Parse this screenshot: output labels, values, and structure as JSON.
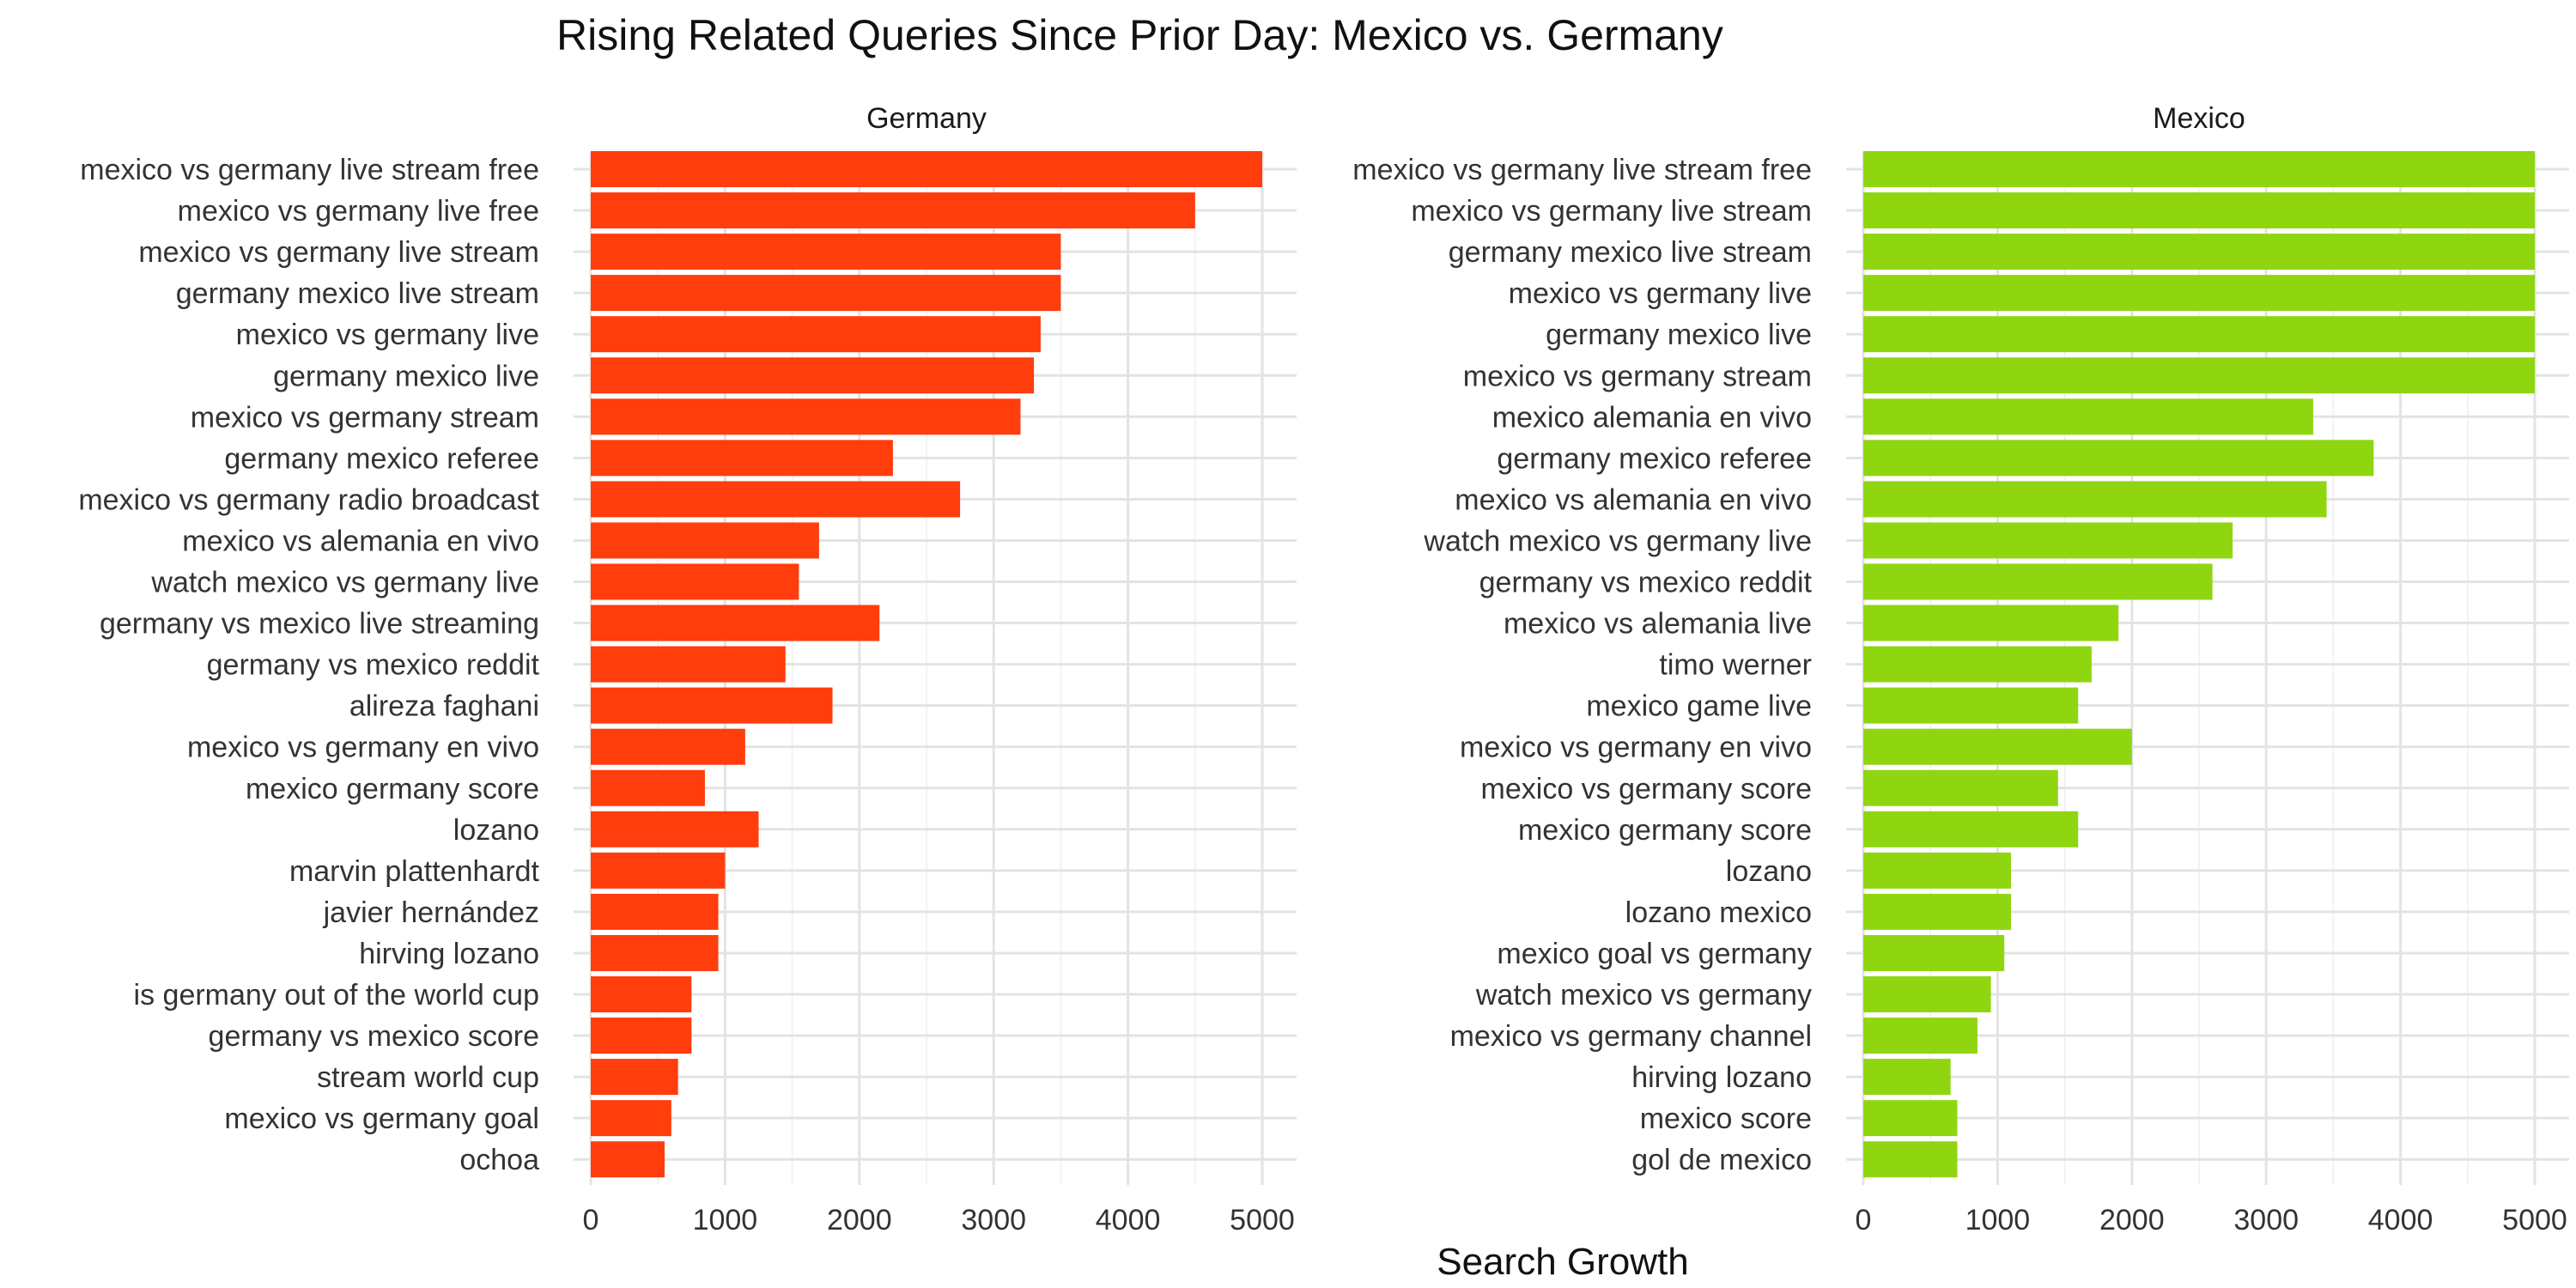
{
  "title": "Rising Related Queries Since Prior Day: Mexico vs. Germany",
  "xlabel": "Search Growth",
  "colors": {
    "Germany": "#ff3d0d",
    "Mexico": "#8fd611"
  },
  "chart_data": [
    {
      "type": "bar",
      "orientation": "horizontal",
      "panel": "Germany",
      "xlim": [
        0,
        5000
      ],
      "xticks": [
        0,
        1000,
        2000,
        3000,
        4000,
        5000
      ],
      "grid": true,
      "categories": [
        "mexico vs germany live stream free",
        "mexico vs germany live free",
        "mexico vs germany live stream",
        "germany mexico live stream",
        "mexico vs germany live",
        "germany mexico live",
        "mexico vs germany stream",
        "germany mexico referee",
        "mexico vs germany radio broadcast",
        "mexico vs alemania en vivo",
        "watch mexico vs germany live",
        "germany vs mexico live streaming",
        "germany vs mexico reddit",
        "alireza faghani",
        "mexico vs germany en vivo",
        "mexico germany score",
        "lozano",
        "marvin plattenhardt",
        "javier hernández",
        "hirving lozano",
        "is germany out of the world cup",
        "germany vs mexico score",
        "stream world cup",
        "mexico vs germany goal",
        "ochoa"
      ],
      "values": [
        5000,
        4500,
        3500,
        3500,
        3350,
        3300,
        3200,
        2250,
        2750,
        1700,
        1550,
        2150,
        1450,
        1800,
        1150,
        850,
        1250,
        1000,
        950,
        950,
        750,
        750,
        650,
        600,
        550
      ]
    },
    {
      "type": "bar",
      "orientation": "horizontal",
      "panel": "Mexico",
      "xlim": [
        0,
        5000
      ],
      "xticks": [
        0,
        1000,
        2000,
        3000,
        4000,
        5000
      ],
      "grid": true,
      "categories": [
        "mexico vs germany live stream free",
        "mexico vs germany live stream",
        "germany mexico live stream",
        "mexico vs germany live",
        "germany mexico live",
        "mexico vs germany stream",
        "mexico alemania en vivo",
        "germany mexico referee",
        "mexico vs alemania en vivo",
        "watch mexico vs germany live",
        "germany vs mexico reddit",
        "mexico vs alemania live",
        "timo werner",
        "mexico game live",
        "mexico vs germany en vivo",
        "mexico vs germany score",
        "mexico germany score",
        "lozano",
        "lozano mexico",
        "mexico goal vs germany",
        "watch mexico vs germany",
        "mexico vs germany channel",
        "hirving lozano",
        "mexico score",
        "gol de mexico"
      ],
      "values": [
        5000,
        5000,
        5000,
        5000,
        5000,
        5000,
        3350,
        3800,
        3450,
        2750,
        2600,
        1900,
        1700,
        1600,
        2000,
        1450,
        1600,
        1100,
        1100,
        1050,
        950,
        850,
        650,
        700,
        700
      ]
    }
  ]
}
